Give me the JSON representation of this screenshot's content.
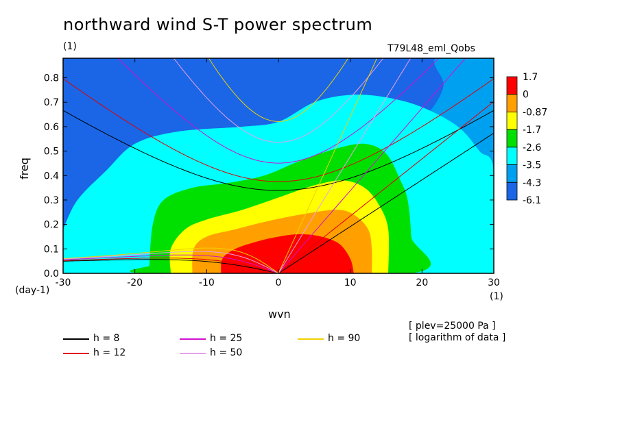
{
  "title": "northward wind S-T power spectrum",
  "units_label": "(1)",
  "run_label": "T79L48_eml_Qobs",
  "x_unit_label": "(1)",
  "y_unit_label": "(day-1)",
  "notes": [
    "[ plev=25000 Pa ]",
    "[ logarithm of data ]"
  ],
  "colors": {
    "level_fills": [
      "#1a66e6",
      "#00a0f0",
      "#00ffff",
      "#00e000",
      "#ffff00",
      "#ffa000",
      "#ff0000"
    ],
    "dispersion": {
      "8": "#000000",
      "12": "#e00000",
      "25": "#d010d0",
      "50": "#e8a0e8",
      "90": "#f0d000"
    }
  },
  "chart_data": {
    "type": "heatmap",
    "title": "northward wind S-T power spectrum",
    "xlabel": "wvn",
    "ylabel": "freq",
    "xlim": [
      -30,
      30
    ],
    "ylim": [
      0,
      0.88
    ],
    "xticks": [
      -30,
      -20,
      -10,
      0,
      10,
      20,
      30
    ],
    "yticks": [
      0.0,
      0.1,
      0.2,
      0.3,
      0.4,
      0.5,
      0.6,
      0.7,
      0.8
    ],
    "colorbar_levels": [
      "1.7",
      "0",
      "-0.87",
      "-1.7",
      "-2.6",
      "-3.5",
      "-4.3",
      "-6.1"
    ],
    "contour_regions": [
      {
        "level_index": 1,
        "polygon": [
          [
            -23,
            0
          ],
          [
            -21,
            0.1
          ],
          [
            -17,
            0.33
          ],
          [
            -8,
            0.41
          ],
          [
            -2,
            0.44
          ],
          [
            8,
            0.52
          ],
          [
            12,
            0.55
          ],
          [
            18,
            0.6
          ],
          [
            21,
            0.66
          ],
          [
            23,
            0.77
          ],
          [
            22,
            0.88
          ],
          [
            30,
            0.88
          ],
          [
            30,
            0
          ],
          [
            -23,
            0
          ]
        ]
      },
      {
        "level_index": 2,
        "polygon": [
          [
            -30,
            0.18
          ],
          [
            -28,
            0.3
          ],
          [
            -24,
            0.42
          ],
          [
            -20,
            0.53
          ],
          [
            -14,
            0.58
          ],
          [
            -5,
            0.6
          ],
          [
            0,
            0.62
          ],
          [
            5,
            0.7
          ],
          [
            10,
            0.73
          ],
          [
            15,
            0.72
          ],
          [
            20,
            0.68
          ],
          [
            25,
            0.6
          ],
          [
            28,
            0.5
          ],
          [
            30,
            0.42
          ],
          [
            30,
            0
          ],
          [
            -30,
            0
          ],
          [
            -30,
            0.18
          ]
        ]
      },
      {
        "level_index": 3,
        "polygon": [
          [
            -18,
            0.03
          ],
          [
            -17.5,
            0.2
          ],
          [
            -16,
            0.3
          ],
          [
            -12,
            0.35
          ],
          [
            -7,
            0.37
          ],
          [
            -2,
            0.4
          ],
          [
            3,
            0.46
          ],
          [
            8,
            0.51
          ],
          [
            12,
            0.53
          ],
          [
            15,
            0.49
          ],
          [
            17,
            0.38
          ],
          [
            18,
            0.3
          ],
          [
            18.5,
            0.15
          ],
          [
            18.5,
            0
          ],
          [
            -18,
            0
          ],
          [
            -18,
            0.03
          ]
        ]
      },
      {
        "level_index": 4,
        "polygon": [
          [
            -15,
            0
          ],
          [
            -15,
            0.1
          ],
          [
            -13,
            0.18
          ],
          [
            -10,
            0.22
          ],
          [
            -5,
            0.26
          ],
          [
            0,
            0.31
          ],
          [
            5,
            0.36
          ],
          [
            9,
            0.38
          ],
          [
            12,
            0.35
          ],
          [
            14,
            0.28
          ],
          [
            15.3,
            0.18
          ],
          [
            15.3,
            0
          ]
        ]
      },
      {
        "level_index": 5,
        "polygon": [
          [
            -12,
            0
          ],
          [
            -11.8,
            0.1
          ],
          [
            -10,
            0.15
          ],
          [
            -6,
            0.18
          ],
          [
            -2,
            0.21
          ],
          [
            3,
            0.24
          ],
          [
            8,
            0.26
          ],
          [
            10.5,
            0.24
          ],
          [
            12.5,
            0.18
          ],
          [
            13,
            0.1
          ],
          [
            13,
            0
          ]
        ]
      },
      {
        "level_index": 6,
        "polygon": [
          [
            -8,
            0
          ],
          [
            -7.8,
            0.06
          ],
          [
            -6,
            0.1
          ],
          [
            -3,
            0.13
          ],
          [
            0,
            0.15
          ],
          [
            3,
            0.16
          ],
          [
            6,
            0.15
          ],
          [
            8.5,
            0.12
          ],
          [
            10,
            0.06
          ],
          [
            10.5,
            0
          ]
        ]
      }
    ],
    "series": [
      {
        "name": "h =  8",
        "equivalent_depth": 8
      },
      {
        "name": "h = 12",
        "equivalent_depth": 12
      },
      {
        "name": "h = 25",
        "equivalent_depth": 25
      },
      {
        "name": "h = 50",
        "equivalent_depth": 50
      },
      {
        "name": "h = 90",
        "equivalent_depth": 90
      }
    ],
    "legend_position": "bottom"
  }
}
